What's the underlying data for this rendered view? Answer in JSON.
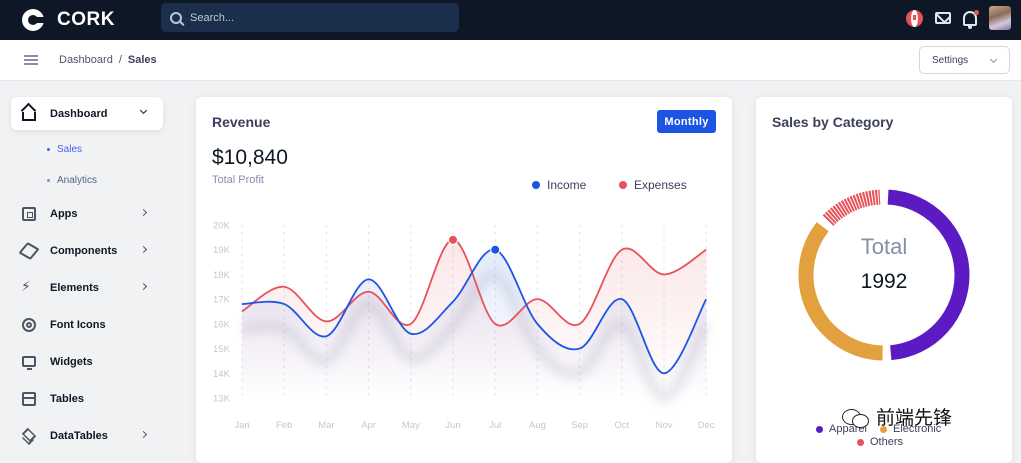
{
  "app": {
    "name": "CORK"
  },
  "search": {
    "placeholder": "Search..."
  },
  "breadcrumb": {
    "parent": "Dashboard",
    "separator": "/",
    "current": "Sales"
  },
  "header": {
    "settings_label": "Settings"
  },
  "sidebar": {
    "items": [
      {
        "label": "Dashboard",
        "icon": "home-icon"
      },
      {
        "label": "Apps",
        "icon": "cpu-icon"
      },
      {
        "label": "Components",
        "icon": "box-icon"
      },
      {
        "label": "Elements",
        "icon": "zap-icon"
      },
      {
        "label": "Font Icons",
        "icon": "target-icon"
      },
      {
        "label": "Widgets",
        "icon": "monitor-icon"
      },
      {
        "label": "Tables",
        "icon": "table-icon"
      },
      {
        "label": "DataTables",
        "icon": "layers-icon"
      }
    ],
    "sub_items": [
      {
        "label": "Sales"
      },
      {
        "label": "Analytics"
      }
    ]
  },
  "revenue": {
    "title": "Revenue",
    "period_button": "Monthly",
    "total_value": "$10,840",
    "total_label": "Total Profit",
    "legend_income": "Income",
    "legend_expenses": "Expenses"
  },
  "sales_category": {
    "title": "Sales by Category",
    "total_label": "Total",
    "total_value": "1992",
    "legend": [
      {
        "label": "Apparel",
        "color": "#5c1ac3"
      },
      {
        "label": "Electronic",
        "color": "#e2a03f"
      },
      {
        "label": "Others",
        "color": "#e7515a"
      }
    ]
  },
  "watermark": {
    "text": "前端先锋"
  },
  "colors": {
    "income": "#1b55e2",
    "expenses": "#e7515a",
    "apparel": "#5c1ac3",
    "electronic": "#e2a03f",
    "others": "#e7515a"
  },
  "chart_data": [
    {
      "type": "line",
      "categories": [
        "Jan",
        "Feb",
        "Mar",
        "Apr",
        "May",
        "Jun",
        "Jul",
        "Aug",
        "Sep",
        "Oct",
        "Nov",
        "Dec"
      ],
      "y_ticks": [
        "13K",
        "14K",
        "15K",
        "16K",
        "17K",
        "18K",
        "19K",
        "20K"
      ],
      "ylim": [
        13000,
        20000
      ],
      "series": [
        {
          "name": "Income",
          "values": [
            16800,
            16800,
            15500,
            17800,
            15600,
            16900,
            19000,
            16000,
            15000,
            17000,
            14000,
            17000
          ]
        },
        {
          "name": "Expenses",
          "values": [
            16500,
            17500,
            16100,
            17300,
            16000,
            19400,
            16000,
            17000,
            16000,
            19000,
            18000,
            19000
          ]
        }
      ],
      "title": "Revenue",
      "legend_position": "top-right",
      "grid": "vertical-dashed"
    },
    {
      "type": "pie",
      "style": "donut",
      "labels": [
        "Apparel",
        "Electronic",
        "Others"
      ],
      "values": [
        985,
        737,
        270
      ],
      "title": "Sales by Category",
      "center_label": "Total",
      "center_value": 1992
    }
  ]
}
